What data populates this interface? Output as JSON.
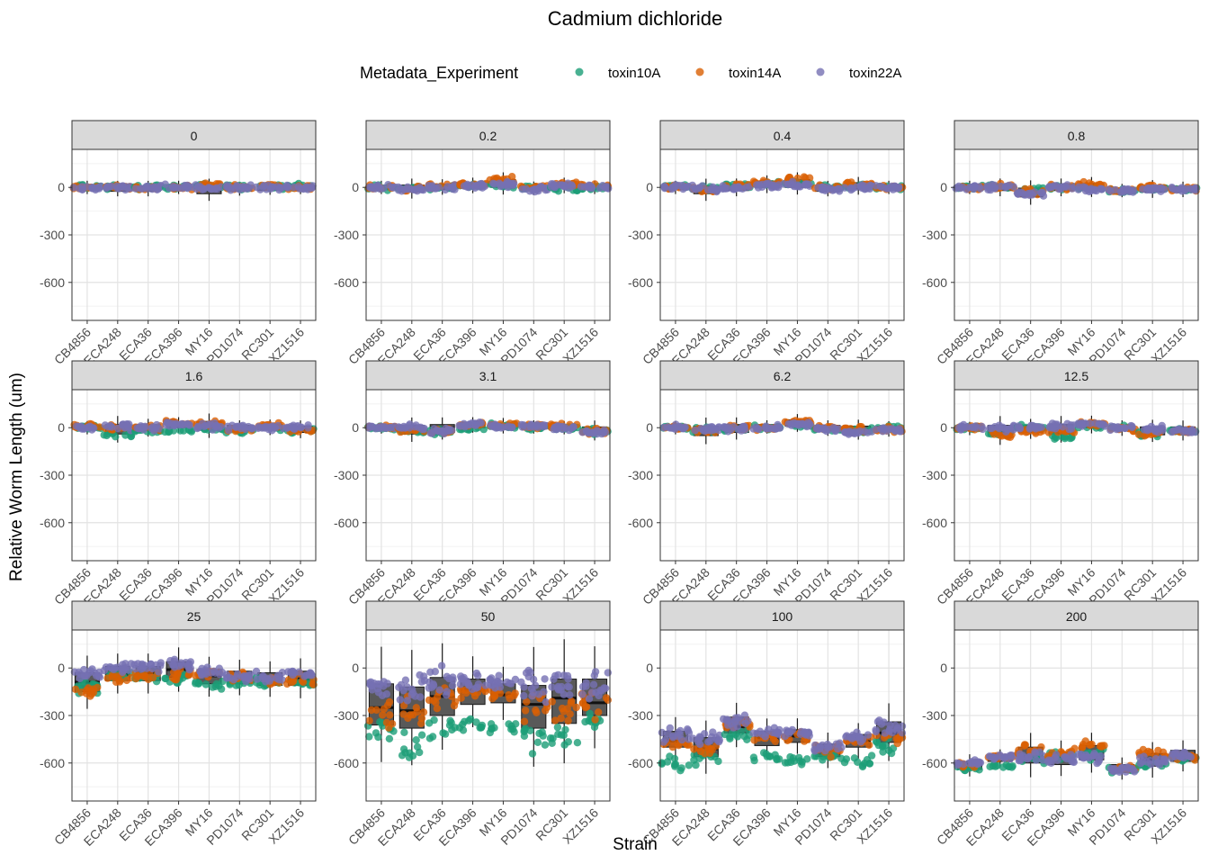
{
  "title": "Cadmium dichloride",
  "chart_data": {
    "type": "scatter",
    "title": "Cadmium dichloride",
    "xlabel": "Strain",
    "ylabel": "Relative Worm Length (um)",
    "legend_title": "Metadata_Experiment",
    "legend_position": "top",
    "categories": [
      "CB4856",
      "ECA248",
      "ECA36",
      "ECA396",
      "MY16",
      "PD1074",
      "RC301",
      "XZ1516"
    ],
    "y_ticks": [
      0,
      -300,
      -600
    ],
    "y_tick_labels": [
      "0",
      "-300",
      "-600"
    ],
    "ylim": [
      -840,
      240
    ],
    "series": [
      {
        "name": "toxin10A",
        "color": "#1b9e77"
      },
      {
        "name": "toxin14A",
        "color": "#d95f02"
      },
      {
        "name": "toxin22A",
        "color": "#7570b3"
      }
    ],
    "box_fill": "#595959",
    "panels": [
      {
        "label": "0",
        "medians": [
          0,
          -10,
          -10,
          0,
          -20,
          -10,
          -5,
          -10
        ],
        "boxes": [
          [
            -15,
            15
          ],
          [
            -25,
            10
          ],
          [
            -25,
            10
          ],
          [
            -15,
            15
          ],
          [
            -40,
            10
          ],
          [
            -25,
            5
          ],
          [
            -20,
            10
          ],
          [
            -20,
            5
          ]
        ],
        "series_means": [
          [
            5,
            0,
            -5
          ],
          [
            5,
            0,
            0
          ],
          [
            0,
            0,
            0
          ],
          [
            0,
            0,
            0
          ],
          [
            5,
            10,
            0
          ],
          [
            5,
            0,
            0
          ],
          [
            5,
            10,
            0
          ],
          [
            5,
            0,
            0
          ]
        ]
      },
      {
        "label": "0.2",
        "medians": [
          0,
          -10,
          0,
          10,
          20,
          -5,
          10,
          0
        ],
        "boxes": [
          [
            -15,
            15
          ],
          [
            -30,
            15
          ],
          [
            -15,
            20
          ],
          [
            -5,
            30
          ],
          [
            0,
            50
          ],
          [
            -20,
            10
          ],
          [
            -5,
            30
          ],
          [
            -15,
            15
          ]
        ],
        "series_means": [
          [
            0,
            0,
            0
          ],
          [
            -10,
            -10,
            -10
          ],
          [
            0,
            10,
            0
          ],
          [
            10,
            20,
            10
          ],
          [
            10,
            50,
            20
          ],
          [
            0,
            0,
            -10
          ],
          [
            -10,
            20,
            10
          ],
          [
            -5,
            10,
            0
          ]
        ]
      },
      {
        "label": "0.4",
        "medians": [
          0,
          -20,
          0,
          20,
          20,
          -5,
          10,
          0
        ],
        "boxes": [
          [
            -15,
            15
          ],
          [
            -40,
            10
          ],
          [
            -20,
            20
          ],
          [
            0,
            40
          ],
          [
            0,
            50
          ],
          [
            -25,
            10
          ],
          [
            -10,
            30
          ],
          [
            -15,
            15
          ]
        ],
        "series_means": [
          [
            0,
            0,
            0
          ],
          [
            -10,
            -20,
            -10
          ],
          [
            10,
            10,
            0
          ],
          [
            20,
            30,
            10
          ],
          [
            30,
            50,
            20
          ],
          [
            0,
            0,
            -10
          ],
          [
            10,
            20,
            0
          ],
          [
            0,
            0,
            0
          ]
        ]
      },
      {
        "label": "0.8",
        "medians": [
          0,
          0,
          -30,
          0,
          0,
          -20,
          -10,
          -10
        ],
        "boxes": [
          [
            -15,
            15
          ],
          [
            -20,
            20
          ],
          [
            -60,
            -5
          ],
          [
            -20,
            20
          ],
          [
            -20,
            25
          ],
          [
            -35,
            -5
          ],
          [
            -30,
            10
          ],
          [
            -30,
            5
          ]
        ],
        "series_means": [
          [
            0,
            0,
            0
          ],
          [
            10,
            10,
            0
          ],
          [
            -20,
            -30,
            -40
          ],
          [
            0,
            0,
            0
          ],
          [
            0,
            20,
            -10
          ],
          [
            -20,
            -20,
            -20
          ],
          [
            -10,
            0,
            -10
          ],
          [
            -10,
            -10,
            -10
          ]
        ]
      },
      {
        "label": "1.6",
        "medians": [
          0,
          -10,
          0,
          20,
          10,
          0,
          0,
          -10
        ],
        "boxes": [
          [
            -15,
            15
          ],
          [
            -40,
            20
          ],
          [
            -20,
            20
          ],
          [
            0,
            35
          ],
          [
            -15,
            40
          ],
          [
            -20,
            15
          ],
          [
            -15,
            20
          ],
          [
            -30,
            10
          ]
        ],
        "series_means": [
          [
            0,
            10,
            0
          ],
          [
            -40,
            0,
            10
          ],
          [
            -20,
            0,
            0
          ],
          [
            -20,
            30,
            20
          ],
          [
            0,
            30,
            10
          ],
          [
            -20,
            -10,
            0
          ],
          [
            0,
            10,
            0
          ],
          [
            -20,
            -10,
            0
          ]
        ]
      },
      {
        "label": "3.1",
        "medians": [
          0,
          0,
          0,
          20,
          10,
          10,
          0,
          -20
        ],
        "boxes": [
          [
            -15,
            10
          ],
          [
            -40,
            15
          ],
          [
            -30,
            20
          ],
          [
            0,
            35
          ],
          [
            -5,
            30
          ],
          [
            -10,
            20
          ],
          [
            -15,
            15
          ],
          [
            -40,
            5
          ]
        ],
        "series_means": [
          [
            0,
            0,
            0
          ],
          [
            -20,
            -10,
            0
          ],
          [
            -30,
            -20,
            -20
          ],
          [
            0,
            20,
            20
          ],
          [
            10,
            20,
            10
          ],
          [
            0,
            10,
            10
          ],
          [
            0,
            10,
            0
          ],
          [
            -20,
            -20,
            -30
          ]
        ]
      },
      {
        "label": "6.2",
        "medians": [
          0,
          -20,
          0,
          0,
          30,
          0,
          -10,
          -10
        ],
        "boxes": [
          [
            -15,
            15
          ],
          [
            -50,
            10
          ],
          [
            -30,
            20
          ],
          [
            -10,
            20
          ],
          [
            10,
            50
          ],
          [
            -20,
            15
          ],
          [
            -35,
            10
          ],
          [
            -25,
            10
          ]
        ],
        "series_means": [
          [
            0,
            0,
            0
          ],
          [
            -20,
            -20,
            -10
          ],
          [
            -10,
            0,
            -10
          ],
          [
            0,
            0,
            0
          ],
          [
            20,
            40,
            20
          ],
          [
            -10,
            0,
            -10
          ],
          [
            -20,
            -10,
            -30
          ],
          [
            0,
            -10,
            -10
          ]
        ]
      },
      {
        "label": "12.5",
        "medians": [
          -5,
          -20,
          0,
          -10,
          20,
          0,
          -20,
          -20
        ],
        "boxes": [
          [
            -20,
            10
          ],
          [
            -50,
            15
          ],
          [
            -30,
            15
          ],
          [
            -40,
            20
          ],
          [
            0,
            40
          ],
          [
            -20,
            15
          ],
          [
            -45,
            5
          ],
          [
            -40,
            5
          ]
        ],
        "series_means": [
          [
            0,
            0,
            0
          ],
          [
            -30,
            -40,
            0
          ],
          [
            0,
            -20,
            0
          ],
          [
            -60,
            -20,
            10
          ],
          [
            10,
            30,
            20
          ],
          [
            0,
            -10,
            0
          ],
          [
            -40,
            -40,
            -10
          ],
          [
            -20,
            -20,
            -20
          ]
        ]
      },
      {
        "label": "25",
        "medians": [
          -90,
          -40,
          -30,
          -10,
          -50,
          -60,
          -70,
          -70
        ],
        "boxes": [
          [
            -150,
            -30
          ],
          [
            -80,
            10
          ],
          [
            -80,
            10
          ],
          [
            -60,
            40
          ],
          [
            -100,
            -10
          ],
          [
            -100,
            -20
          ],
          [
            -110,
            -30
          ],
          [
            -110,
            -20
          ]
        ],
        "series_means": [
          [
            -120,
            -150,
            -40
          ],
          [
            -40,
            -60,
            10
          ],
          [
            -60,
            -50,
            10
          ],
          [
            -60,
            -40,
            20
          ],
          [
            -110,
            -30,
            -30
          ],
          [
            -90,
            -60,
            -50
          ],
          [
            -90,
            -80,
            -60
          ],
          [
            -90,
            -80,
            -40
          ]
        ]
      },
      {
        "label": "50",
        "medians": [
          -250,
          -270,
          -180,
          -140,
          -170,
          -230,
          -190,
          -220
        ],
        "boxes": [
          [
            -360,
            -100
          ],
          [
            -380,
            -120
          ],
          [
            -300,
            -60
          ],
          [
            -230,
            -70
          ],
          [
            -220,
            -100
          ],
          [
            -380,
            -110
          ],
          [
            -350,
            -70
          ],
          [
            -300,
            -70
          ]
        ],
        "series_means": [
          [
            -380,
            -300,
            -120
          ],
          [
            -500,
            -270,
            -120
          ],
          [
            -380,
            -180,
            -80
          ],
          [
            -370,
            -150,
            -80
          ],
          [
            -390,
            -170,
            -90
          ],
          [
            -440,
            -250,
            -120
          ],
          [
            -420,
            -270,
            -120
          ],
          [
            -340,
            -230,
            -110
          ]
        ]
      },
      {
        "label": "100",
        "medians": [
          -460,
          -510,
          -370,
          -440,
          -430,
          -510,
          -460,
          -410
        ],
        "boxes": [
          [
            -500,
            -400
          ],
          [
            -560,
            -440
          ],
          [
            -410,
            -310
          ],
          [
            -490,
            -400
          ],
          [
            -470,
            -390
          ],
          [
            -560,
            -480
          ],
          [
            -500,
            -420
          ],
          [
            -470,
            -340
          ]
        ],
        "series_means": [
          [
            -600,
            -480,
            -420
          ],
          [
            -570,
            -510,
            -440
          ],
          [
            -420,
            -360,
            -340
          ],
          [
            -560,
            -440,
            -410
          ],
          [
            -590,
            -430,
            -410
          ],
          [
            -560,
            -520,
            -500
          ],
          [
            -590,
            -460,
            -440
          ],
          [
            -480,
            -440,
            -380
          ]
        ]
      },
      {
        "label": "200",
        "medians": [
          -610,
          -570,
          -560,
          -570,
          -540,
          -640,
          -580,
          -560
        ],
        "boxes": [
          [
            -640,
            -590
          ],
          [
            -590,
            -550
          ],
          [
            -600,
            -500
          ],
          [
            -610,
            -530
          ],
          [
            -580,
            -490
          ],
          [
            -660,
            -610
          ],
          [
            -620,
            -540
          ],
          [
            -590,
            -520
          ]
        ],
        "series_means": [
          [
            -630,
            -610,
            -600
          ],
          [
            -620,
            -560,
            -560
          ],
          [
            -570,
            -510,
            -560
          ],
          [
            -560,
            -540,
            -580
          ],
          [
            -550,
            -490,
            -560
          ],
          [
            -640,
            -630,
            -640
          ],
          [
            -600,
            -540,
            -590
          ],
          [
            -570,
            -560,
            -550
          ]
        ]
      }
    ]
  }
}
